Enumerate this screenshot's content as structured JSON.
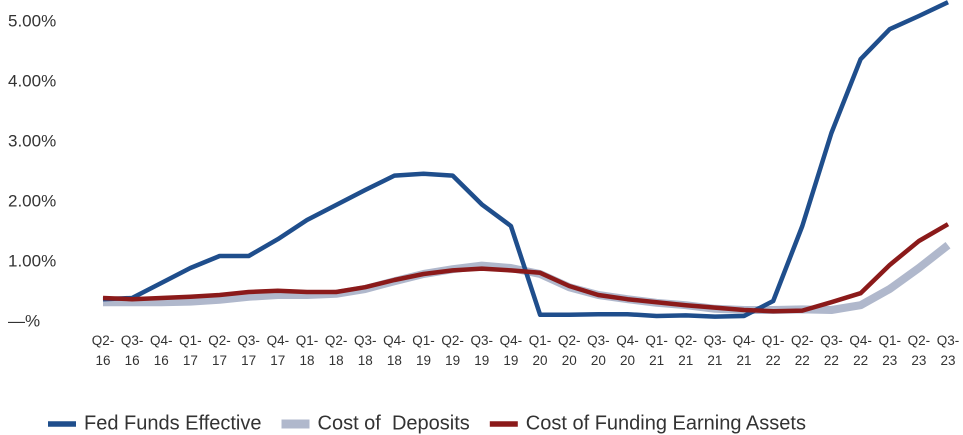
{
  "chart_data": {
    "type": "line",
    "categories": [
      "Q2-16",
      "Q3-16",
      "Q4-16",
      "Q1-17",
      "Q2-17",
      "Q3-17",
      "Q4-17",
      "Q1-18",
      "Q2-18",
      "Q3-18",
      "Q4-18",
      "Q1-19",
      "Q2-19",
      "Q3-19",
      "Q4-19",
      "Q1-20",
      "Q2-20",
      "Q3-20",
      "Q4-20",
      "Q1-21",
      "Q2-21",
      "Q3-21",
      "Q4-21",
      "Q1-22",
      "Q2-22",
      "Q3-22",
      "Q4-22",
      "Q1-23",
      "Q2-23",
      "Q3-23"
    ],
    "series": [
      {
        "name": "Fed Funds Effective",
        "color": "#1f4e8c",
        "values": [
          0.38,
          0.4,
          0.65,
          0.9,
          1.1,
          1.1,
          1.38,
          1.7,
          1.95,
          2.2,
          2.44,
          2.47,
          2.44,
          1.96,
          1.6,
          0.12,
          0.12,
          0.13,
          0.13,
          0.1,
          0.11,
          0.09,
          0.1,
          0.35,
          1.6,
          3.15,
          4.38,
          4.88,
          5.1,
          5.33
        ]
      },
      {
        "name": "Cost of  Deposits",
        "color": "#b0b8cc",
        "values": [
          0.33,
          0.33,
          0.33,
          0.34,
          0.37,
          0.42,
          0.45,
          0.45,
          0.47,
          0.55,
          0.68,
          0.8,
          0.88,
          0.94,
          0.9,
          0.8,
          0.58,
          0.45,
          0.38,
          0.32,
          0.28,
          0.22,
          0.2,
          0.2,
          0.21,
          0.2,
          0.28,
          0.55,
          0.9,
          1.28
        ]
      },
      {
        "name": "Cost of Funding Earning Assets",
        "color": "#8b1a1a",
        "values": [
          0.4,
          0.38,
          0.4,
          0.42,
          0.45,
          0.5,
          0.52,
          0.5,
          0.5,
          0.58,
          0.7,
          0.8,
          0.86,
          0.89,
          0.86,
          0.82,
          0.6,
          0.45,
          0.38,
          0.33,
          0.28,
          0.24,
          0.2,
          0.18,
          0.19,
          0.33,
          0.48,
          0.95,
          1.35,
          1.63
        ]
      }
    ],
    "ylim": [
      0,
      5.4
    ],
    "yticks": [
      {
        "value": 0,
        "label": "—%"
      },
      {
        "value": 1,
        "label": "1.00%"
      },
      {
        "value": 2,
        "label": "2.00%"
      },
      {
        "value": 3,
        "label": "3.00%"
      },
      {
        "value": 4,
        "label": "4.00%"
      },
      {
        "value": 5,
        "label": "5.00%"
      }
    ],
    "grid": false,
    "legend": "bottom"
  }
}
